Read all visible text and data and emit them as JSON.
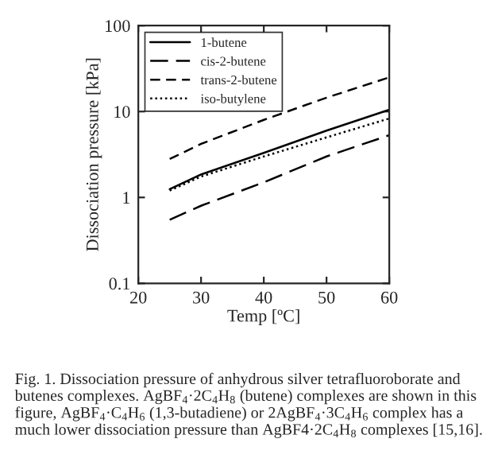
{
  "chart_data": {
    "type": "line",
    "xlabel": "Temp [ºC]",
    "ylabel": "Dissociation pressure [kPa]",
    "x": [
      25,
      30,
      40,
      50,
      60
    ],
    "series": [
      {
        "name": "1-butene",
        "color": "#000000",
        "line_style": "solid",
        "values": [
          1.25,
          1.85,
          3.3,
          6.0,
          10.5
        ]
      },
      {
        "name": "cis-2-butene",
        "color": "#000000",
        "line_style": "longdash",
        "values": [
          0.55,
          0.8,
          1.5,
          3.0,
          5.3
        ]
      },
      {
        "name": "trans-2-butene",
        "color": "#000000",
        "line_style": "dashed",
        "values": [
          2.8,
          4.2,
          8.0,
          14.5,
          25
        ]
      },
      {
        "name": "iso-butylene",
        "color": "#000000",
        "line_style": "dotted",
        "values": [
          1.2,
          1.75,
          3.0,
          5.0,
          8.3
        ]
      }
    ],
    "log": "y",
    "xlim": [
      20,
      60
    ],
    "ylim": [
      0.1,
      100
    ],
    "xticks": [
      20,
      30,
      40,
      50,
      60
    ],
    "yticks": [
      0.1,
      1,
      10,
      100
    ],
    "grid": false,
    "legend": "top left",
    "marker": "none",
    "annotations": [
      "Fig. 1. Dissociation pressure of anhydrous silver tetrafluoroborate and butenes complexes. AgBF$_{4}$·2C$_{4}$H$_{8}$ (butene) complexes are shown in this figure, AgBF$_{4}$·C$_{4}$H$_{6}$ (1,3-butadiene) or 2AgBF$_{4}$·3C$_{4}$H$_{6}$ complex has a much lower dissociation pressure than AgBF4·2C$_{4}$H$_{8}$ complexes [15,16]."
    ]
  }
}
